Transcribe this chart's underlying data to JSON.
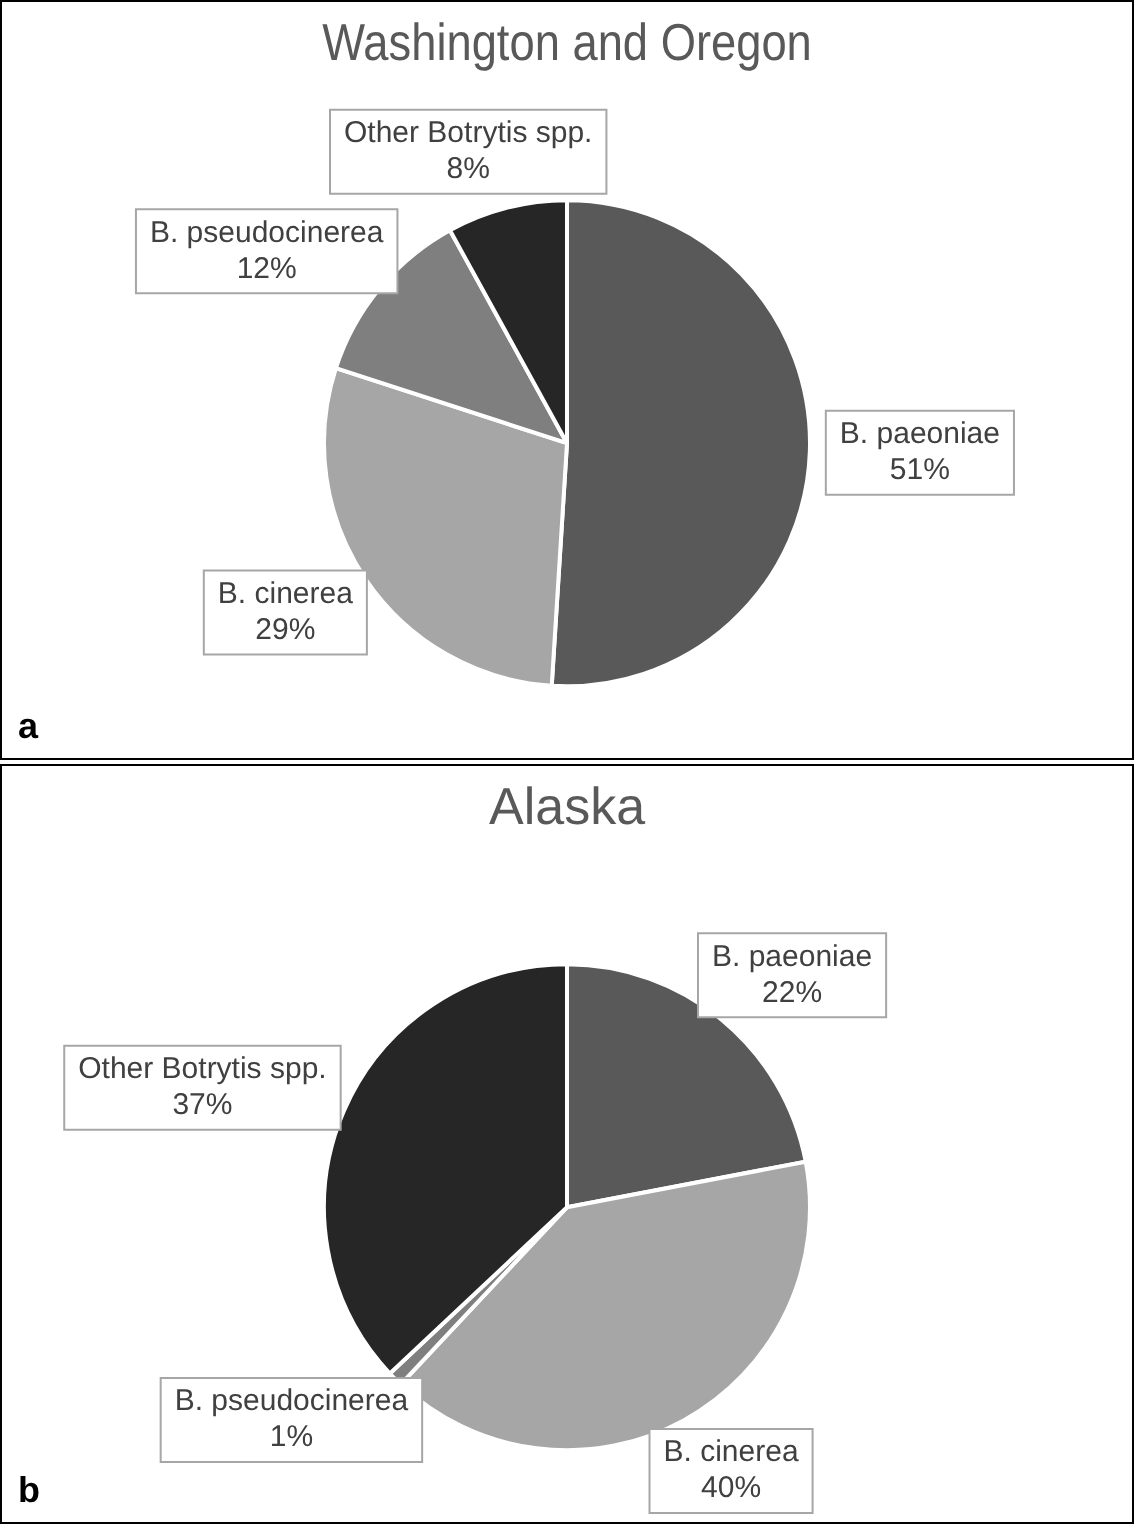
{
  "chart_data": [
    {
      "type": "pie",
      "title": "Washington and Oregon",
      "categories": [
        "B. paeoniae",
        "B. cinerea",
        "B. pseudocinerea",
        "Other Botrytis spp."
      ],
      "values": [
        51,
        29,
        12,
        8
      ],
      "colors": [
        "#595959",
        "#a6a6a6",
        "#7f7f7f",
        "#262626"
      ],
      "value_labels": [
        "51%",
        "29%",
        "12%",
        "8%"
      ],
      "legend": false,
      "annotations": [
        "a"
      ]
    },
    {
      "type": "pie",
      "title": "Alaska",
      "categories": [
        "B. paeoniae",
        "B. cinerea",
        "B. pseudocinerea",
        "Other Botrytis spp."
      ],
      "values": [
        22,
        40,
        1,
        37
      ],
      "colors": [
        "#595959",
        "#a6a6a6",
        "#7f7f7f",
        "#262626"
      ],
      "value_labels": [
        "22%",
        "40%",
        "1%",
        "37%"
      ],
      "legend": false,
      "annotations": [
        "b"
      ]
    }
  ]
}
